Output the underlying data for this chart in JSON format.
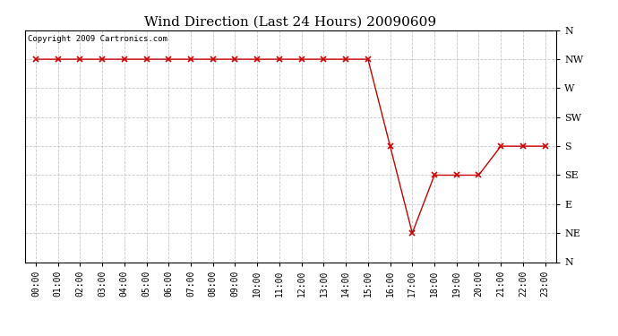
{
  "title": "Wind Direction (Last 24 Hours) 20090609",
  "copyright_text": "Copyright 2009 Cartronics.com",
  "line_color": "#cc0000",
  "marker": "x",
  "marker_color": "#cc0000",
  "background_color": "#ffffff",
  "grid_color": "#c8c8c8",
  "x_labels": [
    "00:00",
    "01:00",
    "02:00",
    "03:00",
    "04:00",
    "05:00",
    "06:00",
    "07:00",
    "08:00",
    "09:00",
    "10:00",
    "11:00",
    "12:00",
    "13:00",
    "14:00",
    "15:00",
    "16:00",
    "17:00",
    "18:00",
    "19:00",
    "20:00",
    "21:00",
    "22:00",
    "23:00"
  ],
  "y_tick_vals": [
    360,
    315,
    270,
    225,
    180,
    135,
    90,
    45,
    0
  ],
  "y_tick_labels": [
    "N",
    "NW",
    "W",
    "SW",
    "S",
    "SE",
    "E",
    "NE",
    "N"
  ],
  "data": [
    315,
    315,
    315,
    315,
    315,
    315,
    315,
    315,
    315,
    315,
    315,
    315,
    315,
    315,
    315,
    315,
    180,
    45,
    135,
    135,
    135,
    180,
    180,
    180
  ],
  "figsize": [
    6.9,
    3.75
  ],
  "dpi": 100
}
